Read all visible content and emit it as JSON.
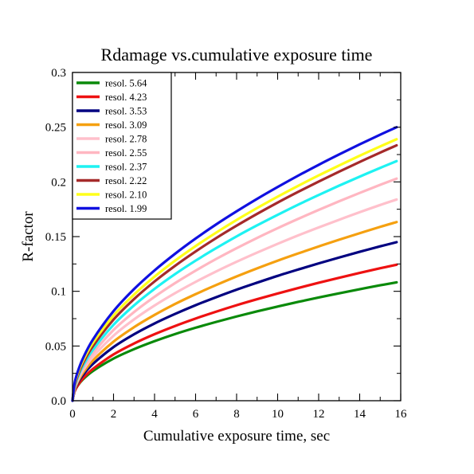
{
  "chart_data": {
    "type": "line",
    "title": "Rdamage vs.cumulative exposure time",
    "xlabel": "Cumulative exposure time, sec",
    "ylabel": "R-factor",
    "xlim": [
      0,
      16
    ],
    "ylim": [
      0,
      0.3
    ],
    "xticks": [
      0,
      2,
      4,
      6,
      8,
      10,
      12,
      14,
      16
    ],
    "xtick_labels": [
      "0",
      "2",
      "4",
      "6",
      "8",
      "10",
      "12",
      "14",
      "16"
    ],
    "yticks": [
      0,
      0.05,
      0.1,
      0.15,
      0.2,
      0.25,
      0.3
    ],
    "ytick_labels": [
      "0.0",
      "0.05",
      "0.1",
      "0.15",
      "0.2",
      "0.25",
      "0.3"
    ],
    "grid": false,
    "legend_position": "top-left",
    "x": [
      0,
      0.1,
      0.25,
      0.5,
      1,
      2,
      3,
      4,
      5,
      6,
      7,
      8,
      9,
      10,
      11,
      12,
      13,
      14,
      15,
      15.8
    ],
    "series": [
      {
        "name": "resol. 5.64",
        "color": "#0a8a0a",
        "values": [
          0,
          0.0085,
          0.0136,
          0.0193,
          0.0272,
          0.0385,
          0.0471,
          0.0544,
          0.0609,
          0.0667,
          0.072,
          0.077,
          0.0817,
          0.0861,
          0.0903,
          0.0943,
          0.0982,
          0.1019,
          0.1055,
          0.1082
        ]
      },
      {
        "name": "resol. 4.23",
        "color": "#ee1111",
        "values": [
          0,
          0.0083,
          0.0138,
          0.0201,
          0.0291,
          0.0423,
          0.0523,
          0.0608,
          0.0683,
          0.0751,
          0.0814,
          0.0873,
          0.0928,
          0.098,
          0.103,
          0.1078,
          0.1124,
          0.1168,
          0.1211,
          0.1243
        ]
      },
      {
        "name": "resol. 3.53",
        "color": "#000080",
        "values": [
          0,
          0.0095,
          0.0159,
          0.0232,
          0.0337,
          0.049,
          0.0607,
          0.0706,
          0.0793,
          0.0873,
          0.0946,
          0.1015,
          0.1079,
          0.1141,
          0.1199,
          0.1255,
          0.1309,
          0.1361,
          0.1411,
          0.1449
        ]
      },
      {
        "name": "resol. 3.09",
        "color": "#f5a010",
        "values": [
          0,
          0.01,
          0.017,
          0.0251,
          0.0368,
          0.054,
          0.0672,
          0.0784,
          0.0884,
          0.0974,
          0.1057,
          0.1136,
          0.121,
          0.128,
          0.1346,
          0.141,
          0.1472,
          0.1531,
          0.1589,
          0.1633
        ]
      },
      {
        "name": "resol. 2.78",
        "color": "#ffc0cb",
        "values": [
          0,
          0.0107,
          0.0183,
          0.0272,
          0.0402,
          0.0594,
          0.0743,
          0.087,
          0.0983,
          0.1086,
          0.1181,
          0.127,
          0.1354,
          0.1434,
          0.1511,
          0.1584,
          0.1654,
          0.1723,
          0.1789,
          0.1839
        ]
      },
      {
        "name": "resol. 2.55",
        "color": "#ffb6c1",
        "values": [
          0,
          0.0114,
          0.0196,
          0.0293,
          0.0435,
          0.0646,
          0.081,
          0.095,
          0.1075,
          0.1189,
          0.1295,
          0.1394,
          0.1488,
          0.1577,
          0.1662,
          0.1744,
          0.1823,
          0.1899,
          0.1973,
          0.203
        ]
      },
      {
        "name": "resol. 2.37",
        "color": "#1ef2f2",
        "values": [
          0,
          0.0122,
          0.021,
          0.0314,
          0.0467,
          0.0694,
          0.0871,
          0.1022,
          0.1157,
          0.128,
          0.1394,
          0.1502,
          0.1603,
          0.1699,
          0.1792,
          0.188,
          0.1966,
          0.2048,
          0.2128,
          0.219
        ]
      },
      {
        "name": "resol. 2.22",
        "color": "#a52a2a",
        "values": [
          0,
          0.0133,
          0.0227,
          0.0338,
          0.05,
          0.0741,
          0.0929,
          0.109,
          0.1233,
          0.1364,
          0.1486,
          0.16,
          0.1708,
          0.1811,
          0.1909,
          0.2003,
          0.2094,
          0.2182,
          0.2268,
          0.2334
        ]
      },
      {
        "name": "resol. 2.10",
        "color": "#ffff1a",
        "values": [
          0,
          0.0147,
          0.0246,
          0.0361,
          0.053,
          0.0778,
          0.097,
          0.1134,
          0.128,
          0.1413,
          0.1536,
          0.1652,
          0.1761,
          0.1865,
          0.1964,
          0.2059,
          0.215,
          0.2239,
          0.2324,
          0.239
        ]
      },
      {
        "name": "resol. 1.99",
        "color": "#1010e0",
        "values": [
          0,
          0.0158,
          0.0262,
          0.0383,
          0.056,
          0.0819,
          0.102,
          0.1191,
          0.1343,
          0.1482,
          0.1611,
          0.1731,
          0.1845,
          0.1953,
          0.2057,
          0.2156,
          0.2251,
          0.2343,
          0.2432,
          0.25
        ]
      }
    ]
  }
}
